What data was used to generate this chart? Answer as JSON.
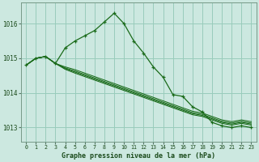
{
  "title": "Graphe pression niveau de la mer (hPa)",
  "background_color": "#cce8e0",
  "grid_color": "#99ccbb",
  "line_color": "#1a6b1a",
  "xlim": [
    -0.5,
    23.5
  ],
  "ylim": [
    1012.6,
    1016.6
  ],
  "xticks": [
    0,
    1,
    2,
    3,
    4,
    5,
    6,
    7,
    8,
    9,
    10,
    11,
    12,
    13,
    14,
    15,
    16,
    17,
    18,
    19,
    20,
    21,
    22,
    23
  ],
  "yticks": [
    1013,
    1014,
    1015,
    1016
  ],
  "main_series": [
    1014.8,
    1015.0,
    1015.05,
    1014.85,
    1015.3,
    1015.5,
    1015.65,
    1015.8,
    1016.05,
    1016.3,
    1016.0,
    1015.5,
    1015.15,
    1014.75,
    1014.45,
    1013.95,
    1013.9,
    1013.6,
    1013.45,
    1013.15,
    1013.05,
    1013.0,
    1013.05,
    1013.0
  ],
  "flat_series": [
    [
      1014.8,
      1015.0,
      1015.05,
      1014.85,
      1014.7,
      1014.6,
      1014.5,
      1014.4,
      1014.3,
      1014.2,
      1014.1,
      1014.0,
      1013.9,
      1013.8,
      1013.7,
      1013.6,
      1013.5,
      1013.4,
      1013.35,
      1013.25,
      1013.15,
      1013.1,
      1013.15,
      1013.1
    ],
    [
      1014.8,
      1015.0,
      1015.05,
      1014.85,
      1014.68,
      1014.57,
      1014.47,
      1014.37,
      1014.27,
      1014.17,
      1014.07,
      1013.97,
      1013.87,
      1013.77,
      1013.67,
      1013.57,
      1013.47,
      1013.37,
      1013.32,
      1013.22,
      1013.12,
      1013.07,
      1013.12,
      1013.07
    ],
    [
      1014.8,
      1015.0,
      1015.05,
      1014.85,
      1014.72,
      1014.63,
      1014.53,
      1014.43,
      1014.33,
      1014.23,
      1014.13,
      1014.03,
      1013.93,
      1013.83,
      1013.73,
      1013.63,
      1013.53,
      1013.43,
      1013.38,
      1013.28,
      1013.18,
      1013.13,
      1013.18,
      1013.13
    ],
    [
      1014.8,
      1015.0,
      1015.05,
      1014.85,
      1014.75,
      1014.67,
      1014.57,
      1014.47,
      1014.37,
      1014.27,
      1014.17,
      1014.07,
      1013.97,
      1013.87,
      1013.77,
      1013.67,
      1013.57,
      1013.47,
      1013.42,
      1013.32,
      1013.22,
      1013.17,
      1013.22,
      1013.17
    ]
  ]
}
